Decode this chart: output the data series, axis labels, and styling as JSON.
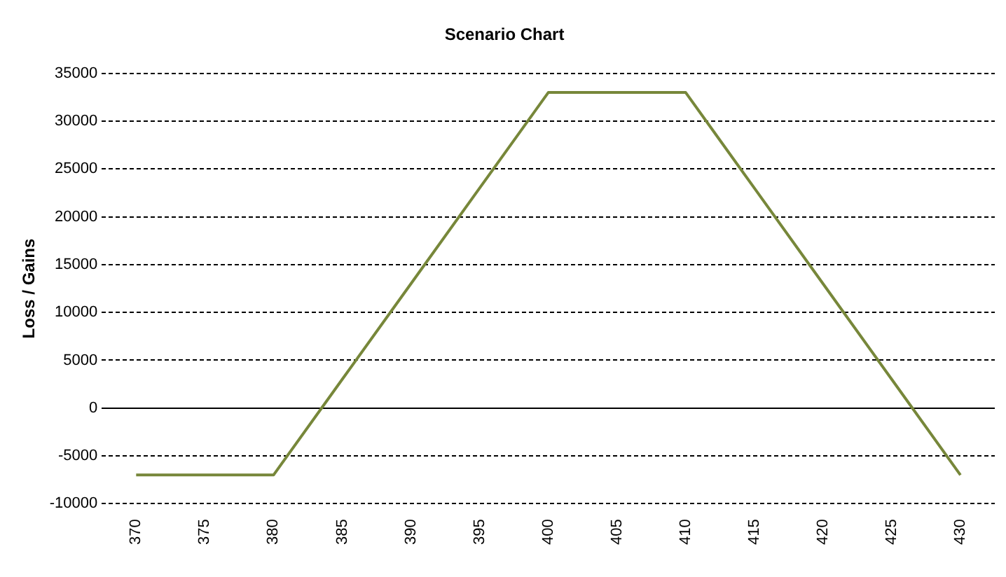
{
  "chart_data": {
    "type": "line",
    "title": "Scenario Chart",
    "ylabel": "Loss / Gains",
    "categories": [
      "370",
      "375",
      "380",
      "385",
      "390",
      "395",
      "400",
      "405",
      "410",
      "415",
      "420",
      "425",
      "430"
    ],
    "series": [
      {
        "color": "#77873a",
        "values": [
          -7000,
          -7000,
          -7000,
          3000,
          13000,
          23000,
          33000,
          33000,
          33000,
          23000,
          13000,
          3000,
          -7000
        ]
      }
    ],
    "ylim": [
      -10000,
      35000
    ],
    "yticks": [
      -10000,
      -5000,
      0,
      5000,
      10000,
      15000,
      20000,
      25000,
      30000,
      35000
    ],
    "grid": "y",
    "legend": false,
    "marker": "none",
    "line_style": "solid"
  }
}
